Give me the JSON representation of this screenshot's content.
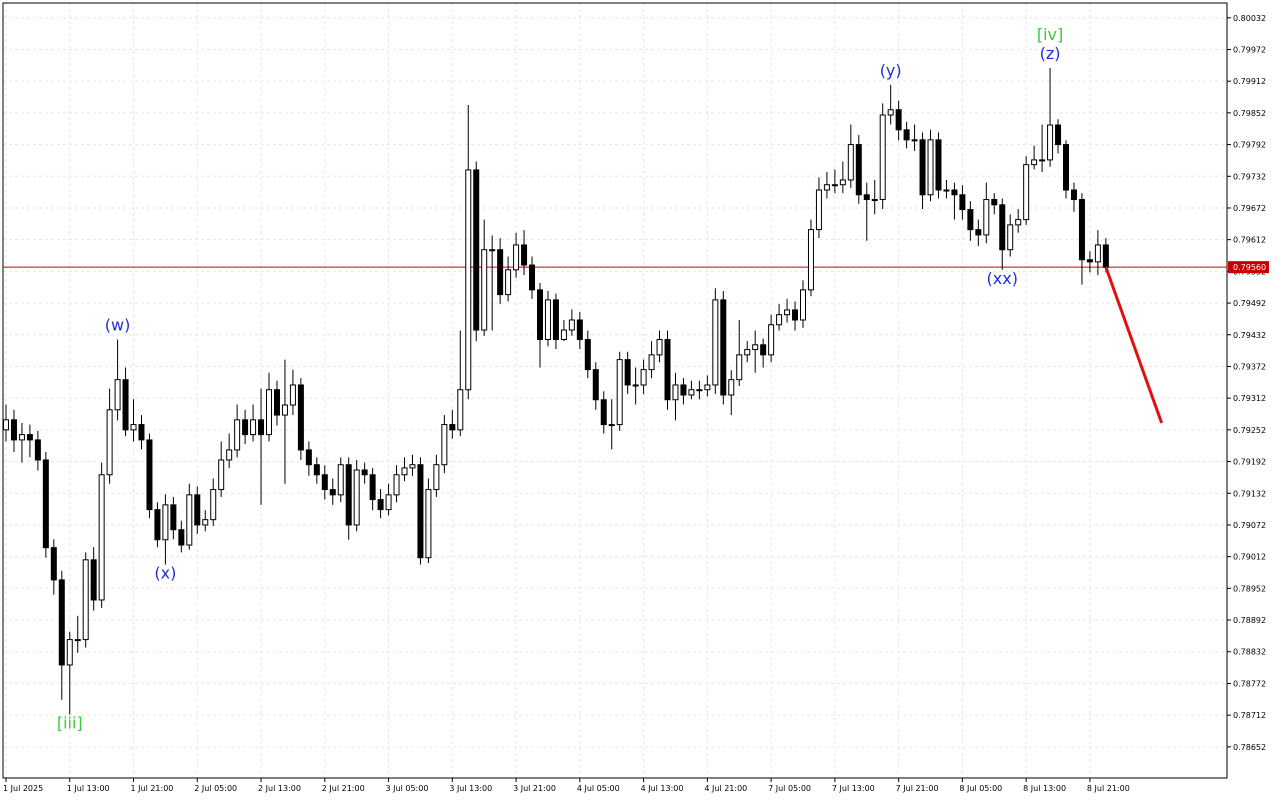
{
  "chart_data": {
    "type": "candlestick",
    "categories": [
      "1 Jul 2025",
      null,
      null,
      null,
      null,
      null,
      null,
      null,
      "1 Jul 13:00",
      null,
      null,
      null,
      null,
      null,
      null,
      null,
      "1 Jul 21:00",
      null,
      null,
      null,
      null,
      null,
      null,
      null,
      "2 Jul 05:00",
      null,
      null,
      null,
      null,
      null,
      null,
      null,
      "2 Jul 13:00",
      null,
      null,
      null,
      null,
      null,
      null,
      null,
      "2 Jul 21:00",
      null,
      null,
      null,
      null,
      null,
      null,
      null,
      "3 Jul 05:00",
      null,
      null,
      null,
      null,
      null,
      null,
      null,
      "3 Jul 13:00",
      null,
      null,
      null,
      null,
      null,
      null,
      null,
      "3 Jul 21:00",
      null,
      null,
      null,
      null,
      null,
      null,
      null,
      "4 Jul 05:00",
      null,
      null,
      null,
      null,
      null,
      null,
      null,
      "4 Jul 13:00",
      null,
      null,
      null,
      null,
      null,
      null,
      null,
      "4 Jul 21:00",
      null,
      null,
      null,
      null,
      null,
      null,
      null,
      "7 Jul 05:00",
      null,
      null,
      null,
      null,
      null,
      null,
      null,
      "7 Jul 13:00",
      null,
      null,
      null,
      null,
      null,
      null,
      null,
      "7 Jul 21:00",
      null,
      null,
      null,
      null,
      null,
      null,
      null,
      "8 Jul 05:00",
      null,
      null,
      null,
      null,
      null,
      null,
      null,
      "8 Jul 13:00",
      null,
      null,
      null,
      null,
      null,
      null,
      null,
      "8 Jul 21:00",
      null,
      null
    ],
    "ohlc": [
      [
        0.79252,
        0.793,
        0.7923,
        0.79271
      ],
      [
        0.79271,
        0.7929,
        0.7921,
        0.79233
      ],
      [
        0.79233,
        0.79265,
        0.7919,
        0.79243
      ],
      [
        0.79243,
        0.79262,
        0.792,
        0.79233
      ],
      [
        0.79233,
        0.7925,
        0.79175,
        0.79195
      ],
      [
        0.79195,
        0.7921,
        0.7901,
        0.79029
      ],
      [
        0.79029,
        0.79045,
        0.7894,
        0.78968
      ],
      [
        0.78968,
        0.78985,
        0.78741,
        0.78807
      ],
      [
        0.78807,
        0.7887,
        0.78713,
        0.78855
      ],
      [
        0.78855,
        0.789,
        0.7883,
        0.78855
      ],
      [
        0.78855,
        0.7902,
        0.7884,
        0.79006
      ],
      [
        0.79006,
        0.7903,
        0.7891,
        0.7893
      ],
      [
        0.7893,
        0.7919,
        0.78915,
        0.79167
      ],
      [
        0.79167,
        0.7933,
        0.7915,
        0.7929
      ],
      [
        0.7929,
        0.79423,
        0.7927,
        0.79347
      ],
      [
        0.79347,
        0.7937,
        0.7924,
        0.79252
      ],
      [
        0.79252,
        0.7931,
        0.7923,
        0.79262
      ],
      [
        0.79262,
        0.7928,
        0.79215,
        0.79233
      ],
      [
        0.79233,
        0.79245,
        0.79085,
        0.79101
      ],
      [
        0.79101,
        0.79115,
        0.7903,
        0.79044
      ],
      [
        0.79044,
        0.7913,
        0.78997,
        0.7911
      ],
      [
        0.7911,
        0.79125,
        0.79045,
        0.79063
      ],
      [
        0.79063,
        0.7908,
        0.7902,
        0.79034
      ],
      [
        0.79034,
        0.7915,
        0.79025,
        0.79129
      ],
      [
        0.79129,
        0.79145,
        0.79055,
        0.79072
      ],
      [
        0.79072,
        0.791,
        0.7906,
        0.79082
      ],
      [
        0.79082,
        0.7916,
        0.7907,
        0.79139
      ],
      [
        0.79139,
        0.7923,
        0.79125,
        0.79195
      ],
      [
        0.79195,
        0.79245,
        0.7918,
        0.79214
      ],
      [
        0.79214,
        0.793,
        0.792,
        0.79271
      ],
      [
        0.79271,
        0.7929,
        0.79225,
        0.79243
      ],
      [
        0.79243,
        0.793,
        0.7923,
        0.79271
      ],
      [
        0.79271,
        0.7933,
        0.7911,
        0.79243
      ],
      [
        0.79243,
        0.7936,
        0.7923,
        0.79328
      ],
      [
        0.79328,
        0.79345,
        0.7926,
        0.7928
      ],
      [
        0.7928,
        0.79385,
        0.7915,
        0.79299
      ],
      [
        0.79299,
        0.79366,
        0.7928,
        0.79337
      ],
      [
        0.79337,
        0.7935,
        0.79195,
        0.79214
      ],
      [
        0.79214,
        0.7923,
        0.79165,
        0.79186
      ],
      [
        0.79186,
        0.792,
        0.7915,
        0.79167
      ],
      [
        0.79167,
        0.79185,
        0.7912,
        0.79139
      ],
      [
        0.79139,
        0.7916,
        0.7911,
        0.79129
      ],
      [
        0.79129,
        0.792,
        0.79115,
        0.79186
      ],
      [
        0.79186,
        0.792,
        0.79044,
        0.79072
      ],
      [
        0.79072,
        0.79195,
        0.7906,
        0.79176
      ],
      [
        0.79176,
        0.7919,
        0.7915,
        0.79167
      ],
      [
        0.79167,
        0.7918,
        0.791,
        0.7912
      ],
      [
        0.7912,
        0.7914,
        0.79085,
        0.79101
      ],
      [
        0.79101,
        0.7915,
        0.7909,
        0.79129
      ],
      [
        0.79129,
        0.79185,
        0.79115,
        0.79167
      ],
      [
        0.79167,
        0.792,
        0.79155,
        0.7918
      ],
      [
        0.7918,
        0.79205,
        0.79165,
        0.79186
      ],
      [
        0.79186,
        0.792,
        0.78997,
        0.7901
      ],
      [
        0.7901,
        0.7916,
        0.79,
        0.79139
      ],
      [
        0.79139,
        0.79205,
        0.79125,
        0.79186
      ],
      [
        0.79186,
        0.7928,
        0.7917,
        0.79262
      ],
      [
        0.79262,
        0.7929,
        0.79235,
        0.79252
      ],
      [
        0.79252,
        0.7944,
        0.7924,
        0.79328
      ],
      [
        0.79328,
        0.79867,
        0.7931,
        0.79744
      ],
      [
        0.79744,
        0.7976,
        0.7942,
        0.79441
      ],
      [
        0.79441,
        0.7965,
        0.7943,
        0.79593
      ],
      [
        0.79593,
        0.7962,
        0.7944,
        0.79593
      ],
      [
        0.79593,
        0.79615,
        0.7949,
        0.79508
      ],
      [
        0.79508,
        0.7958,
        0.79495,
        0.79555
      ],
      [
        0.79555,
        0.79625,
        0.7954,
        0.79602
      ],
      [
        0.79602,
        0.7963,
        0.79545,
        0.79564
      ],
      [
        0.79564,
        0.7958,
        0.795,
        0.79517
      ],
      [
        0.79517,
        0.7953,
        0.7937,
        0.79423
      ],
      [
        0.79423,
        0.79515,
        0.7941,
        0.79498
      ],
      [
        0.79498,
        0.7951,
        0.79405,
        0.79423
      ],
      [
        0.79423,
        0.7946,
        0.7942,
        0.79441
      ],
      [
        0.79441,
        0.7948,
        0.7943,
        0.7946
      ],
      [
        0.7946,
        0.79475,
        0.79405,
        0.79423
      ],
      [
        0.79423,
        0.7944,
        0.7935,
        0.79366
      ],
      [
        0.79366,
        0.7938,
        0.7929,
        0.79309
      ],
      [
        0.79309,
        0.79325,
        0.79245,
        0.79262
      ],
      [
        0.79262,
        0.7931,
        0.79215,
        0.79262
      ],
      [
        0.79262,
        0.794,
        0.7925,
        0.79385
      ],
      [
        0.79385,
        0.794,
        0.7932,
        0.79337
      ],
      [
        0.79337,
        0.7937,
        0.793,
        0.79337
      ],
      [
        0.79337,
        0.79385,
        0.7932,
        0.79366
      ],
      [
        0.79366,
        0.7942,
        0.7935,
        0.79394
      ],
      [
        0.79394,
        0.7944,
        0.7938,
        0.79423
      ],
      [
        0.79423,
        0.7944,
        0.7929,
        0.79309
      ],
      [
        0.79309,
        0.7936,
        0.7927,
        0.79337
      ],
      [
        0.79337,
        0.7935,
        0.793,
        0.79318
      ],
      [
        0.79318,
        0.79345,
        0.7931,
        0.79328
      ],
      [
        0.79328,
        0.79345,
        0.7931,
        0.79328
      ],
      [
        0.79328,
        0.79355,
        0.79315,
        0.79337
      ],
      [
        0.79337,
        0.7952,
        0.7932,
        0.79498
      ],
      [
        0.79498,
        0.79515,
        0.793,
        0.79318
      ],
      [
        0.79318,
        0.79365,
        0.7928,
        0.79347
      ],
      [
        0.79347,
        0.7946,
        0.79335,
        0.79394
      ],
      [
        0.79394,
        0.7942,
        0.7938,
        0.79404
      ],
      [
        0.79404,
        0.7944,
        0.7936,
        0.79413
      ],
      [
        0.79413,
        0.79425,
        0.7937,
        0.79394
      ],
      [
        0.79394,
        0.7947,
        0.7938,
        0.79451
      ],
      [
        0.79451,
        0.7949,
        0.7944,
        0.7947
      ],
      [
        0.7947,
        0.795,
        0.79455,
        0.79479
      ],
      [
        0.79479,
        0.79495,
        0.7944,
        0.7946
      ],
      [
        0.7946,
        0.79535,
        0.79445,
        0.79517
      ],
      [
        0.79517,
        0.7965,
        0.79505,
        0.79631
      ],
      [
        0.79631,
        0.7973,
        0.79615,
        0.79706
      ],
      [
        0.79706,
        0.7974,
        0.7969,
        0.79716
      ],
      [
        0.79716,
        0.79745,
        0.797,
        0.79716
      ],
      [
        0.79716,
        0.7976,
        0.797,
        0.79725
      ],
      [
        0.79725,
        0.7983,
        0.7971,
        0.79792
      ],
      [
        0.79792,
        0.7981,
        0.7968,
        0.79697
      ],
      [
        0.79697,
        0.7972,
        0.7961,
        0.79688
      ],
      [
        0.79688,
        0.79725,
        0.7966,
        0.79688
      ],
      [
        0.79688,
        0.7987,
        0.7967,
        0.79848
      ],
      [
        0.79848,
        0.79905,
        0.7983,
        0.79858
      ],
      [
        0.79858,
        0.79875,
        0.798,
        0.7982
      ],
      [
        0.7982,
        0.79835,
        0.79785,
        0.79801
      ],
      [
        0.79801,
        0.7983,
        0.7978,
        0.79801
      ],
      [
        0.79801,
        0.79815,
        0.7967,
        0.79697
      ],
      [
        0.79697,
        0.7982,
        0.79685,
        0.79801
      ],
      [
        0.79801,
        0.79815,
        0.7969,
        0.79706
      ],
      [
        0.79706,
        0.79725,
        0.7969,
        0.79706
      ],
      [
        0.79706,
        0.7972,
        0.7965,
        0.79697
      ],
      [
        0.79697,
        0.79715,
        0.7965,
        0.79669
      ],
      [
        0.79669,
        0.79685,
        0.7961,
        0.79631
      ],
      [
        0.79631,
        0.7965,
        0.796,
        0.79621
      ],
      [
        0.79621,
        0.7972,
        0.79605,
        0.79688
      ],
      [
        0.79688,
        0.797,
        0.7966,
        0.79678
      ],
      [
        0.79678,
        0.7969,
        0.79555,
        0.79593
      ],
      [
        0.79593,
        0.7966,
        0.7958,
        0.7964
      ],
      [
        0.7964,
        0.7967,
        0.79625,
        0.7965
      ],
      [
        0.7965,
        0.7977,
        0.7964,
        0.79754
      ],
      [
        0.79754,
        0.7979,
        0.79745,
        0.79763
      ],
      [
        0.79763,
        0.7983,
        0.7974,
        0.79763
      ],
      [
        0.79763,
        0.79937,
        0.7975,
        0.79829
      ],
      [
        0.79829,
        0.7984,
        0.79775,
        0.79792
      ],
      [
        0.79792,
        0.798,
        0.7969,
        0.79706
      ],
      [
        0.79706,
        0.7972,
        0.79665,
        0.79688
      ],
      [
        0.79688,
        0.797,
        0.79527,
        0.79574
      ],
      [
        0.79574,
        0.7959,
        0.7955,
        0.7957
      ],
      [
        0.7957,
        0.7963,
        0.79545,
        0.79602
      ],
      [
        0.79602,
        0.79615,
        0.7955,
        0.7956
      ]
    ],
    "ylim": [
      0.78593,
      0.8006
    ],
    "yticks": [
      0.80032,
      0.79972,
      0.79912,
      0.79852,
      0.79792,
      0.79732,
      0.79672,
      0.79612,
      0.79552,
      0.79492,
      0.79432,
      0.79372,
      0.79312,
      0.79252,
      0.79192,
      0.79132,
      0.79072,
      0.79012,
      0.78952,
      0.78892,
      0.78832,
      0.78772,
      0.78712,
      0.78652
    ],
    "grid": true,
    "up_color": "#ffffff",
    "down_color": "#000000",
    "current_price": {
      "value": 0.7956,
      "label": "0.79560",
      "color": "#c80000"
    },
    "forecast_values": [
      0.7956,
      0.79265
    ],
    "forecast_color": "#e01010",
    "annotations": [
      {
        "text": "[iii]",
        "color": "#3cc83c"
      },
      {
        "text": "(w)",
        "color": "#1f2fd8"
      },
      {
        "text": "(x)",
        "color": "#1f2fd8"
      },
      {
        "text": "(y)",
        "color": "#1f2fd8"
      },
      {
        "text": "(xx)",
        "color": "#1f2fd8"
      },
      {
        "text": "[iv]",
        "color": "#3cc83c"
      },
      {
        "text": "(z)",
        "color": "#1f2fd8"
      }
    ]
  }
}
